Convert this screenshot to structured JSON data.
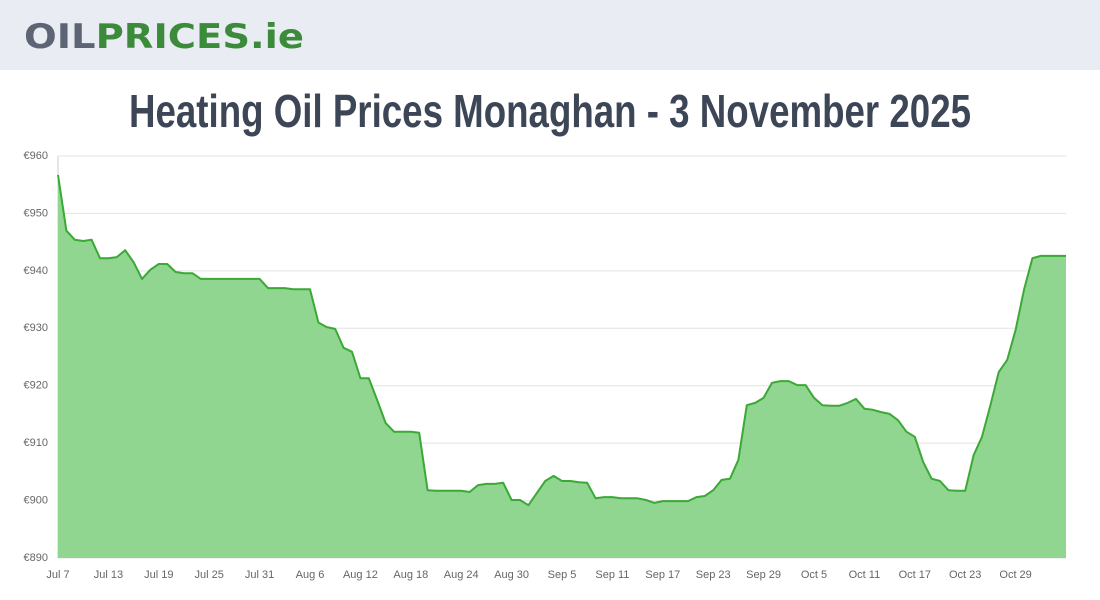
{
  "header": {
    "logo": {
      "part1": "OIL",
      "part2": "PRICES",
      "part3": ".ie"
    }
  },
  "chart_data": {
    "type": "area",
    "title": "Heating Oil Prices Monaghan - 3 November 2025",
    "categories": [
      "Jul 7",
      null,
      null,
      null,
      null,
      null,
      "Jul 13",
      null,
      null,
      null,
      null,
      null,
      "Jul 19",
      null,
      null,
      null,
      null,
      null,
      "Jul 25",
      null,
      null,
      null,
      null,
      null,
      "Jul 31",
      null,
      null,
      null,
      null,
      null,
      "Aug 6",
      null,
      null,
      null,
      null,
      null,
      "Aug 12",
      null,
      null,
      null,
      null,
      null,
      "Aug 18",
      null,
      null,
      null,
      null,
      null,
      "Aug 24",
      null,
      null,
      null,
      null,
      null,
      "Aug 30",
      null,
      null,
      null,
      null,
      null,
      "Sep 5",
      null,
      null,
      null,
      null,
      null,
      "Sep 11",
      null,
      null,
      null,
      null,
      null,
      "Sep 17",
      null,
      null,
      null,
      null,
      null,
      "Sep 23",
      null,
      null,
      null,
      null,
      null,
      "Sep 29",
      null,
      null,
      null,
      null,
      null,
      "Oct 5",
      null,
      null,
      null,
      null,
      null,
      "Oct 11",
      null,
      null,
      null,
      null,
      null,
      "Oct 17",
      null,
      null,
      null,
      null,
      null,
      "Oct 23",
      null,
      null,
      null,
      null,
      null,
      "Oct 29",
      null,
      null,
      null,
      null,
      null,
      null
    ],
    "series": [
      {
        "color": "#3aa935",
        "fill": "#90d690",
        "values": [
          956.7,
          947,
          945.4,
          945.2,
          945.4,
          942.2,
          942.2,
          942.4,
          943.6,
          941.5,
          938.6,
          940.2,
          941.2,
          941.2,
          939.8,
          939.6,
          939.6,
          938.6,
          938.6,
          938.6,
          938.6,
          938.6,
          938.6,
          938.6,
          938.6,
          937,
          937,
          937,
          936.8,
          936.8,
          936.8,
          931,
          930.2,
          929.9,
          926.6,
          925.9,
          921.3,
          921.3,
          917.5,
          913.5,
          912,
          912,
          912,
          911.8,
          901.8,
          901.7,
          901.7,
          901.7,
          901.7,
          901.5,
          902.7,
          902.9,
          902.9,
          903.1,
          900.1,
          900.1,
          899.2,
          901.3,
          903.4,
          904.3,
          903.4,
          903.4,
          903.2,
          903.1,
          900.4,
          900.6,
          900.6,
          900.4,
          900.4,
          900.4,
          900.1,
          899.6,
          899.9,
          899.9,
          899.9,
          899.9,
          900.6,
          900.8,
          901.8,
          903.6,
          903.8,
          907.1,
          916.6,
          917,
          917.9,
          920.5,
          920.8,
          920.8,
          920.1,
          920.1,
          917.9,
          916.6,
          916.5,
          916.5,
          917,
          917.7,
          916,
          915.8,
          915.4,
          915.1,
          914,
          912,
          911.1,
          906.7,
          903.8,
          903.4,
          901.8,
          901.7,
          901.7,
          907.9,
          911.1,
          916.6,
          922.4,
          924.5,
          929.7,
          936.7,
          942.2,
          942.6,
          942.6,
          942.6,
          942.6
        ]
      }
    ],
    "ylim": [
      890,
      960
    ],
    "yticks": [
      {
        "value": 890,
        "label": "€890"
      },
      {
        "value": 900,
        "label": "€900"
      },
      {
        "value": 910,
        "label": "€910"
      },
      {
        "value": 920,
        "label": "€920"
      },
      {
        "value": 930,
        "label": "€930"
      },
      {
        "value": 940,
        "label": "€940"
      },
      {
        "value": 950,
        "label": "€950"
      },
      {
        "value": 960,
        "label": "€960"
      }
    ],
    "grid": true
  }
}
